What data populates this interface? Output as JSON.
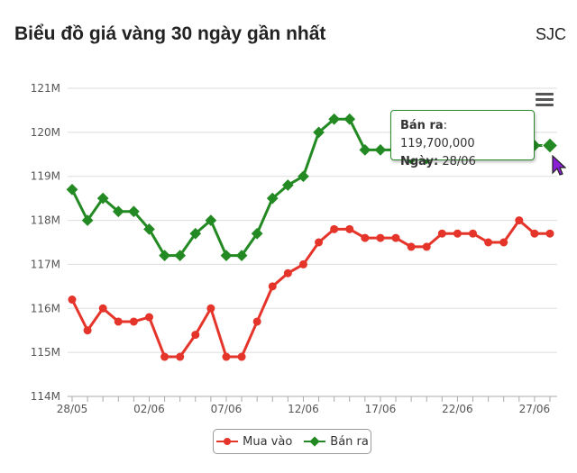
{
  "header": {
    "title": "Biểu đồ giá vàng 30 ngày gần nhất",
    "brand": "SJC"
  },
  "tooltip": {
    "series_label": "Bán ra",
    "value": "119,700,000",
    "date_label": "Ngày:",
    "date": "28/06"
  },
  "colors": {
    "mua": "#e5352b",
    "ban": "#238a23"
  },
  "chart_data": {
    "type": "line",
    "title": "Biểu đồ giá vàng 30 ngày gần nhất",
    "x": [
      "28/05",
      "29/05",
      "30/05",
      "31/05",
      "01/06",
      "02/06",
      "03/06",
      "04/06",
      "05/06",
      "06/06",
      "07/06",
      "08/06",
      "09/06",
      "10/06",
      "11/06",
      "12/06",
      "13/06",
      "14/06",
      "15/06",
      "16/06",
      "17/06",
      "18/06",
      "19/06",
      "20/06",
      "21/06",
      "22/06",
      "23/06",
      "24/06",
      "25/06",
      "26/06",
      "27/06",
      "28/06"
    ],
    "x_tick_labels": [
      "28/05",
      "02/06",
      "07/06",
      "12/06",
      "17/06",
      "22/06",
      "27/06"
    ],
    "y_tick_labels": [
      "114M",
      "115M",
      "116M",
      "117M",
      "118M",
      "119M",
      "120M",
      "121M"
    ],
    "ylim": [
      114,
      121
    ],
    "grid": true,
    "legend": "bottom",
    "series": [
      {
        "name": "Mua vào",
        "color": "#e5352b",
        "values": [
          116.2,
          115.5,
          116.0,
          115.7,
          115.7,
          115.8,
          114.9,
          114.9,
          115.4,
          116.0,
          114.9,
          114.9,
          115.7,
          116.5,
          116.8,
          117.0,
          117.5,
          117.8,
          117.8,
          117.6,
          117.6,
          117.6,
          117.4,
          117.4,
          117.7,
          117.7,
          117.7,
          117.5,
          117.5,
          118.0,
          117.7,
          117.7
        ]
      },
      {
        "name": "Bán ra",
        "color": "#238a23",
        "values": [
          118.7,
          118.0,
          118.5,
          118.2,
          118.2,
          117.8,
          117.2,
          117.2,
          117.7,
          118.0,
          117.2,
          117.2,
          117.7,
          118.5,
          118.8,
          119.0,
          120.0,
          120.3,
          120.3,
          119.6,
          119.6,
          119.6,
          119.4,
          119.4,
          119.7,
          119.7,
          119.7,
          119.5,
          119.5,
          120.0,
          119.7,
          119.7
        ]
      }
    ]
  }
}
